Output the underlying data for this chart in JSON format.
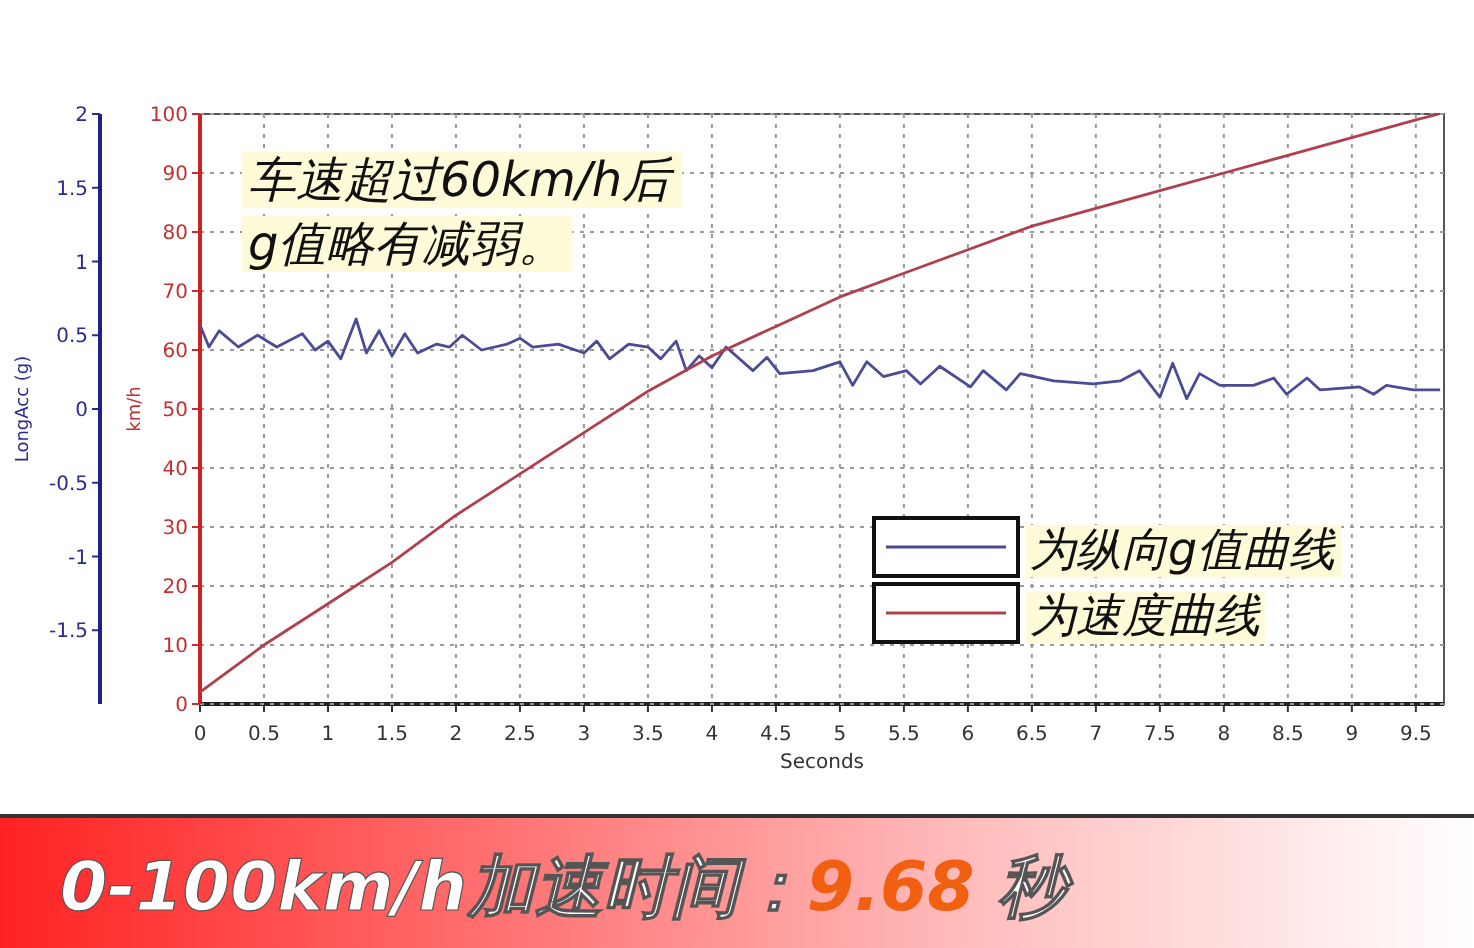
{
  "chart_data": {
    "type": "line",
    "xlabel": "Seconds",
    "ylabel": "LongAcc (g)",
    "y2label": "km/h",
    "xlim": [
      0,
      9.72
    ],
    "xticks": [
      0,
      0.5,
      1,
      1.5,
      2,
      2.5,
      3,
      3.5,
      4,
      4.5,
      5,
      5.5,
      6,
      6.5,
      7,
      7.5,
      8,
      8.5,
      9,
      9.5
    ],
    "ylim": [
      -2,
      2
    ],
    "yticks": [
      -1.5,
      -1,
      -0.5,
      0,
      0.5,
      1,
      1.5,
      2
    ],
    "y2lim": [
      0,
      100
    ],
    "y2ticks": [
      0,
      10,
      20,
      30,
      40,
      50,
      60,
      70,
      80,
      90,
      100
    ],
    "grid": true,
    "legend": "bottom right",
    "line_style": "solid",
    "series": [
      {
        "name": "为纵向g值曲线",
        "color": "#4b4b96",
        "x": [
          0,
          0.07,
          0.15,
          0.3,
          0.45,
          0.6,
          0.8,
          0.9,
          1.0,
          1.1,
          1.22,
          1.3,
          1.4,
          1.5,
          1.6,
          1.7,
          1.85,
          1.95,
          2.05,
          2.2,
          2.4,
          2.5,
          2.6,
          2.8,
          3.0,
          3.1,
          3.2,
          3.35,
          3.5,
          3.6,
          3.72,
          3.8,
          3.9,
          4.0,
          4.11,
          4.32,
          4.43,
          4.53,
          4.79,
          5.0,
          5.1,
          5.21,
          5.34,
          5.52,
          5.63,
          5.78,
          6.02,
          6.12,
          6.3,
          6.41,
          6.67,
          6.98,
          7.19,
          7.34,
          7.5,
          7.6,
          7.71,
          7.81,
          7.97,
          8.23,
          8.39,
          8.49,
          8.65,
          8.75,
          9.06,
          9.17,
          9.27,
          9.48,
          9.69
        ],
        "values": [
          0.57,
          0.42,
          0.53,
          0.42,
          0.5,
          0.42,
          0.51,
          0.4,
          0.46,
          0.34,
          0.61,
          0.38,
          0.53,
          0.36,
          0.51,
          0.38,
          0.44,
          0.42,
          0.5,
          0.4,
          0.44,
          0.48,
          0.42,
          0.44,
          0.38,
          0.46,
          0.34,
          0.44,
          0.42,
          0.34,
          0.46,
          0.26,
          0.36,
          0.28,
          0.42,
          0.26,
          0.35,
          0.24,
          0.26,
          0.32,
          0.16,
          0.32,
          0.22,
          0.26,
          0.17,
          0.29,
          0.15,
          0.26,
          0.13,
          0.24,
          0.19,
          0.17,
          0.19,
          0.26,
          0.08,
          0.31,
          0.07,
          0.24,
          0.16,
          0.16,
          0.21,
          0.1,
          0.21,
          0.13,
          0.15,
          0.1,
          0.16,
          0.13,
          0.13
        ]
      },
      {
        "name": "为速度曲线",
        "color": "#b0404e",
        "axis": "y2",
        "x": [
          0,
          0.5,
          1,
          1.5,
          2,
          2.5,
          3,
          3.5,
          4,
          4.5,
          5,
          5.5,
          6,
          6.5,
          7,
          7.5,
          8,
          8.5,
          9,
          9.5,
          9.68
        ],
        "values": [
          2,
          10,
          17,
          24,
          32,
          39,
          46,
          53,
          59,
          64,
          69,
          73,
          77,
          81,
          84,
          87,
          90,
          93,
          96,
          99,
          100
        ]
      }
    ],
    "annotations": [
      "车速超过60km/h后\ng值略有减弱。",
      "0-100km/h加速时间：9.68 秒"
    ]
  }
}
